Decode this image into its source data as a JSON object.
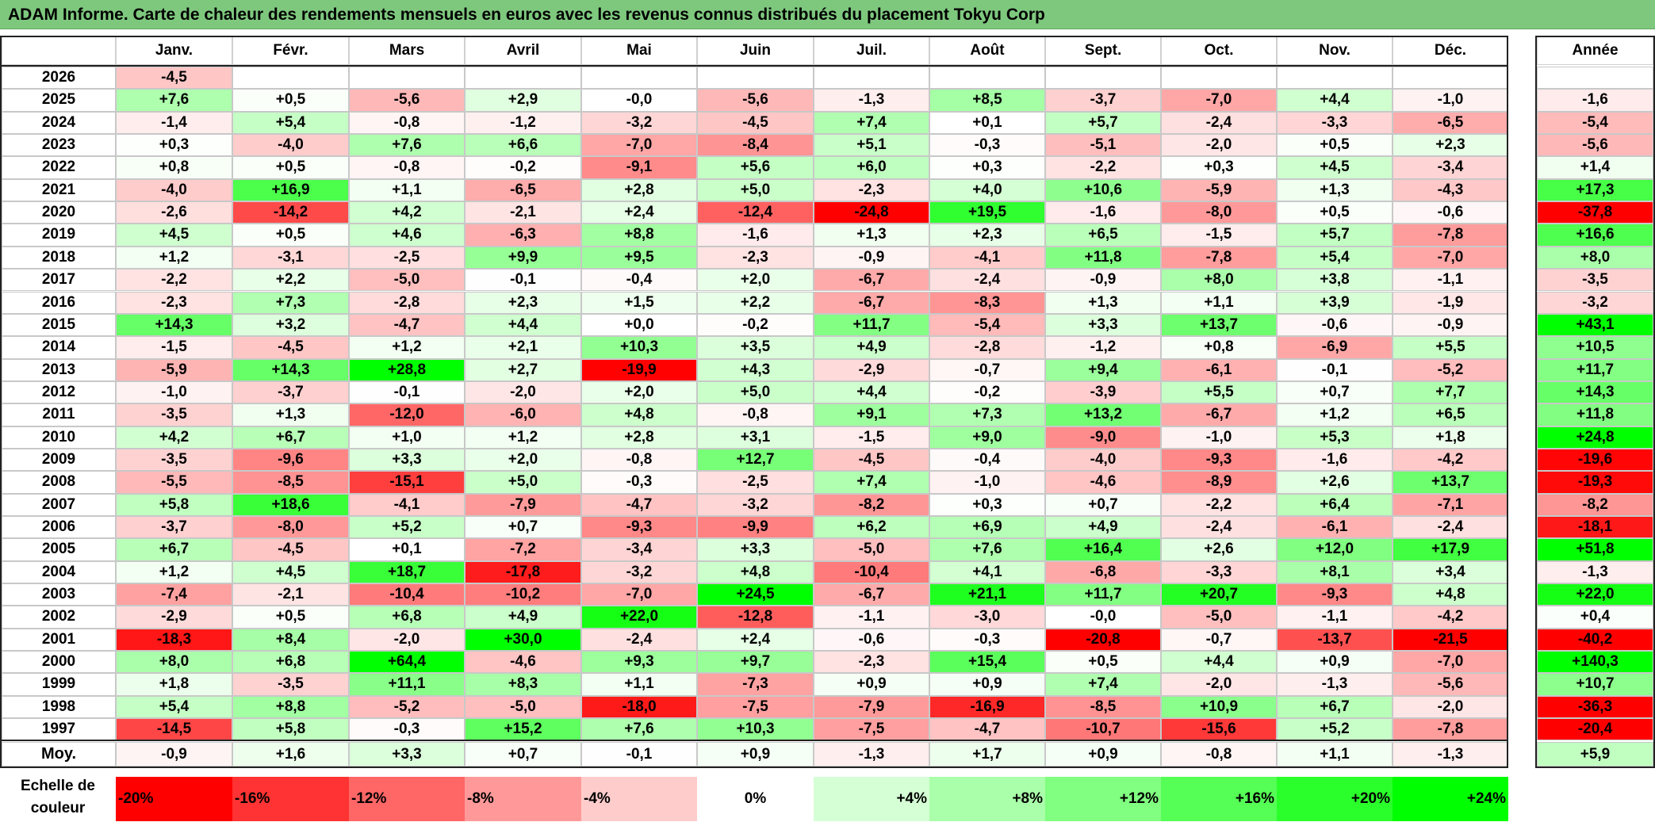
{
  "title": "ADAM Informe. Carte de chaleur des rendements mensuels en euros avec les revenus connus distribués du placement Tokyu Corp",
  "chart_data": {
    "type": "heatmap",
    "months": [
      "Janv.",
      "Févr.",
      "Mars",
      "Avril",
      "Mai",
      "Juin",
      "Juil.",
      "Août",
      "Sept.",
      "Oct.",
      "Nov.",
      "Déc."
    ],
    "year_header": "Année",
    "rows": [
      {
        "year": "2026",
        "values": [
          "-4,5",
          "",
          "",
          "",
          "",
          "",
          "",
          "",
          "",
          "",
          "",
          ""
        ],
        "annual": ""
      },
      {
        "year": "2025",
        "values": [
          "+7,6",
          "+0,5",
          "-5,6",
          "+2,9",
          "-0,0",
          "-5,6",
          "-1,3",
          "+8,5",
          "-3,7",
          "-7,0",
          "+4,4",
          "-1,0"
        ],
        "annual": "-1,6"
      },
      {
        "year": "2024",
        "values": [
          "-1,4",
          "+5,4",
          "-0,8",
          "-1,2",
          "-3,2",
          "-4,5",
          "+7,4",
          "+0,1",
          "+5,7",
          "-2,4",
          "-3,3",
          "-6,5"
        ],
        "annual": "-5,4"
      },
      {
        "year": "2023",
        "values": [
          "+0,3",
          "-4,0",
          "+7,6",
          "+6,6",
          "-7,0",
          "-8,4",
          "+5,1",
          "-0,3",
          "-5,1",
          "-2,0",
          "+0,5",
          "+2,3"
        ],
        "annual": "-5,6"
      },
      {
        "year": "2022",
        "values": [
          "+0,8",
          "+0,5",
          "-0,8",
          "-0,2",
          "-9,1",
          "+5,6",
          "+6,0",
          "+0,3",
          "-2,2",
          "+0,3",
          "+4,5",
          "-3,4"
        ],
        "annual": "+1,4"
      },
      {
        "year": "2021",
        "values": [
          "-4,0",
          "+16,9",
          "+1,1",
          "-6,5",
          "+2,8",
          "+5,0",
          "-2,3",
          "+4,0",
          "+10,6",
          "-5,9",
          "+1,3",
          "-4,3"
        ],
        "annual": "+17,3"
      },
      {
        "year": "2020",
        "values": [
          "-2,6",
          "-14,2",
          "+4,2",
          "-2,1",
          "+2,4",
          "-12,4",
          "-24,8",
          "+19,5",
          "-1,6",
          "-8,0",
          "+0,5",
          "-0,6"
        ],
        "annual": "-37,8"
      },
      {
        "year": "2019",
        "values": [
          "+4,5",
          "+0,5",
          "+4,6",
          "-6,3",
          "+8,8",
          "-1,6",
          "+1,3",
          "+2,3",
          "+6,5",
          "-1,5",
          "+5,7",
          "-7,8"
        ],
        "annual": "+16,6"
      },
      {
        "year": "2018",
        "values": [
          "+1,2",
          "-3,1",
          "-2,5",
          "+9,9",
          "+9,5",
          "-2,3",
          "-0,9",
          "-4,1",
          "+11,8",
          "-7,8",
          "+5,4",
          "-7,0"
        ],
        "annual": "+8,0"
      },
      {
        "year": "2017",
        "values": [
          "-2,2",
          "+2,2",
          "-5,0",
          "-0,1",
          "-0,4",
          "+2,0",
          "-6,7",
          "-2,4",
          "-0,9",
          "+8,0",
          "+3,8",
          "-1,1"
        ],
        "annual": "-3,5"
      },
      {
        "year": "2016",
        "values": [
          "-2,3",
          "+7,3",
          "-2,8",
          "+2,3",
          "+1,5",
          "+2,2",
          "-6,7",
          "-8,3",
          "+1,3",
          "+1,1",
          "+3,9",
          "-1,9"
        ],
        "annual": "-3,2"
      },
      {
        "year": "2015",
        "values": [
          "+14,3",
          "+3,2",
          "-4,7",
          "+4,4",
          "+0,0",
          "-0,2",
          "+11,7",
          "-5,4",
          "+3,3",
          "+13,7",
          "-0,6",
          "-0,9"
        ],
        "annual": "+43,1"
      },
      {
        "year": "2014",
        "values": [
          "-1,5",
          "-4,5",
          "+1,2",
          "+2,1",
          "+10,3",
          "+3,5",
          "+4,9",
          "-2,8",
          "-1,2",
          "+0,8",
          "-6,9",
          "+5,5"
        ],
        "annual": "+10,5"
      },
      {
        "year": "2013",
        "values": [
          "-5,9",
          "+14,3",
          "+28,8",
          "+2,7",
          "-19,9",
          "+4,3",
          "-2,9",
          "-0,7",
          "+9,4",
          "-6,1",
          "-0,1",
          "-5,2"
        ],
        "annual": "+11,7"
      },
      {
        "year": "2012",
        "values": [
          "-1,0",
          "-3,7",
          "-0,1",
          "-2,0",
          "+2,0",
          "+5,0",
          "+4,4",
          "-0,2",
          "-3,9",
          "+5,5",
          "+0,7",
          "+7,7"
        ],
        "annual": "+14,3"
      },
      {
        "year": "2011",
        "values": [
          "-3,5",
          "+1,3",
          "-12,0",
          "-6,0",
          "+4,8",
          "-0,8",
          "+9,1",
          "+7,3",
          "+13,2",
          "-6,7",
          "+1,2",
          "+6,5"
        ],
        "annual": "+11,8"
      },
      {
        "year": "2010",
        "values": [
          "+4,2",
          "+6,7",
          "+1,0",
          "+1,2",
          "+2,8",
          "+3,1",
          "-1,5",
          "+9,0",
          "-9,0",
          "-1,0",
          "+5,3",
          "+1,8"
        ],
        "annual": "+24,8"
      },
      {
        "year": "2009",
        "values": [
          "-3,5",
          "-9,6",
          "+3,3",
          "+2,0",
          "-0,8",
          "+12,7",
          "-4,5",
          "-0,4",
          "-4,0",
          "-9,3",
          "-1,6",
          "-4,2"
        ],
        "annual": "-19,6"
      },
      {
        "year": "2008",
        "values": [
          "-5,5",
          "-8,5",
          "-15,1",
          "+5,0",
          "-0,3",
          "-2,5",
          "+7,4",
          "-1,0",
          "-4,6",
          "-8,9",
          "+2,6",
          "+13,7"
        ],
        "annual": "-19,3"
      },
      {
        "year": "2007",
        "values": [
          "+5,8",
          "+18,6",
          "-4,1",
          "-7,9",
          "-4,7",
          "-3,2",
          "-8,2",
          "+0,3",
          "+0,7",
          "-2,2",
          "+6,4",
          "-7,1"
        ],
        "annual": "-8,2"
      },
      {
        "year": "2006",
        "values": [
          "-3,7",
          "-8,0",
          "+5,2",
          "+0,7",
          "-9,3",
          "-9,9",
          "+6,2",
          "+6,9",
          "+4,9",
          "-2,4",
          "-6,1",
          "-2,4"
        ],
        "annual": "-18,1"
      },
      {
        "year": "2005",
        "values": [
          "+6,7",
          "-4,5",
          "+0,1",
          "-7,2",
          "-3,4",
          "+3,3",
          "-5,0",
          "+7,6",
          "+16,4",
          "+2,6",
          "+12,0",
          "+17,9"
        ],
        "annual": "+51,8"
      },
      {
        "year": "2004",
        "values": [
          "+1,2",
          "+4,5",
          "+18,7",
          "-17,8",
          "-3,2",
          "+4,8",
          "-10,4",
          "+4,1",
          "-6,8",
          "-3,3",
          "+8,1",
          "+3,4"
        ],
        "annual": "-1,3"
      },
      {
        "year": "2003",
        "values": [
          "-7,4",
          "-2,1",
          "-10,4",
          "-10,2",
          "-7,0",
          "+24,5",
          "-6,7",
          "+21,1",
          "+11,7",
          "+20,7",
          "-9,3",
          "+4,8"
        ],
        "annual": "+22,0"
      },
      {
        "year": "2002",
        "values": [
          "-2,9",
          "+0,5",
          "+6,8",
          "+4,9",
          "+22,0",
          "-12,8",
          "-1,1",
          "-3,0",
          "-0,0",
          "-5,0",
          "-1,1",
          "-4,2"
        ],
        "annual": "+0,4"
      },
      {
        "year": "2001",
        "values": [
          "-18,3",
          "+8,4",
          "-2,0",
          "+30,0",
          "-2,4",
          "+2,4",
          "-0,6",
          "-0,3",
          "-20,8",
          "-0,7",
          "-13,7",
          "-21,5"
        ],
        "annual": "-40,2"
      },
      {
        "year": "2000",
        "values": [
          "+8,0",
          "+6,8",
          "+64,4",
          "-4,6",
          "+9,3",
          "+9,7",
          "-2,3",
          "+15,4",
          "+0,5",
          "+4,4",
          "+0,9",
          "-7,0"
        ],
        "annual": "+140,3"
      },
      {
        "year": "1999",
        "values": [
          "+1,8",
          "-3,5",
          "+11,1",
          "+8,3",
          "+1,1",
          "-7,3",
          "+0,9",
          "+0,9",
          "+7,4",
          "-2,0",
          "-1,3",
          "-5,6"
        ],
        "annual": "+10,7"
      },
      {
        "year": "1998",
        "values": [
          "+5,4",
          "+8,8",
          "-5,2",
          "-5,0",
          "-18,0",
          "-7,5",
          "-7,9",
          "-16,9",
          "-8,5",
          "+10,9",
          "+6,7",
          "-2,0"
        ],
        "annual": "-36,3"
      },
      {
        "year": "1997",
        "values": [
          "-14,5",
          "+5,8",
          "-0,3",
          "+15,2",
          "+7,6",
          "+10,3",
          "-7,5",
          "-4,7",
          "-10,7",
          "-15,6",
          "+5,2",
          "-7,8"
        ],
        "annual": "-20,4"
      }
    ],
    "average": {
      "label": "Moy.",
      "values": [
        "-0,9",
        "+1,6",
        "+3,3",
        "+0,7",
        "-0,1",
        "+0,9",
        "-1,3",
        "+1,7",
        "+0,9",
        "-0,8",
        "+1,1",
        "-1,3"
      ],
      "annual": "+5,9"
    },
    "color_scale": {
      "label_line1": "Echelle de",
      "label_line2": "couleur",
      "stops": [
        "-20%",
        "-16%",
        "-12%",
        "-8%",
        "-4%",
        "0%",
        "+4%",
        "+8%",
        "+12%",
        "+16%",
        "+20%",
        "+24%"
      ],
      "stop_values": [
        -20,
        -16,
        -12,
        -8,
        -4,
        0,
        4,
        8,
        12,
        16,
        20,
        24
      ],
      "negative_color": "#ff0000",
      "neutral_color": "#ffffff",
      "positive_color": "#00ff00"
    }
  }
}
